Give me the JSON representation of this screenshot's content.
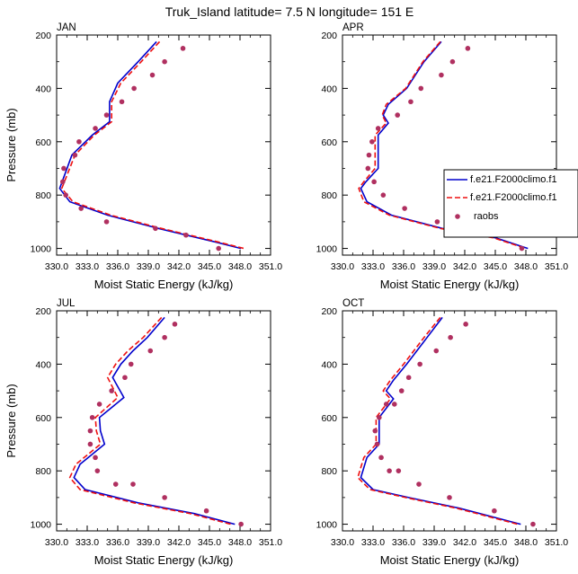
{
  "title": "Truk_Island  latitude= 7.5 N longitude= 151 E",
  "colors": {
    "model1": "#0000cc",
    "model2": "#ee1111",
    "raobs": "#b03060"
  },
  "legend": [
    "f.e21.F2000climo.f1",
    "f.e21.F2000climo.f1",
    "raobs"
  ],
  "chart_data": [
    {
      "type": "line",
      "panel": "JAN",
      "xlabel": "Moist Static Energy (kJ/kg)",
      "ylabel": "Pressure (mb)",
      "xlim": [
        330.0,
        351.0
      ],
      "ylim": [
        1025,
        200
      ],
      "xticks": [
        "330.0",
        "333.0",
        "336.0",
        "339.0",
        "342.0",
        "345.0",
        "348.0",
        "351.0"
      ],
      "yticks": [
        "200",
        "400",
        "600",
        "800",
        "1000"
      ],
      "series": [
        {
          "name": "f.e21.F2000climo.f1",
          "x": [
            339.8,
            338.0,
            336.0,
            335.2,
            335.2,
            333.5,
            331.5,
            330.3,
            331.3,
            335.0,
            340.0,
            345.5,
            348.1
          ],
          "y": [
            225,
            300,
            380,
            450,
            525,
            575,
            650,
            775,
            825,
            875,
            925,
            975,
            1000
          ]
        },
        {
          "name": "f.e21.F2000climo.f1",
          "x": [
            340.1,
            338.3,
            336.3,
            335.4,
            335.4,
            333.7,
            331.8,
            330.5,
            331.6,
            335.3,
            340.3,
            345.8,
            348.4
          ],
          "y": [
            225,
            300,
            380,
            450,
            525,
            575,
            650,
            775,
            825,
            875,
            925,
            975,
            1000
          ]
        },
        {
          "name": "raobs",
          "x": [
            342.4,
            340.6,
            339.4,
            337.6,
            336.4,
            334.9,
            333.8,
            332.2,
            331.8,
            330.7,
            330.6,
            330.9,
            332.4,
            334.9,
            339.7,
            342.7,
            345.9
          ],
          "y": [
            250,
            300,
            350,
            400,
            450,
            500,
            550,
            600,
            650,
            700,
            750,
            800,
            850,
            900,
            925,
            950,
            1000
          ]
        }
      ]
    },
    {
      "type": "line",
      "panel": "APR",
      "xlabel": "Moist Static Energy (kJ/kg)",
      "ylabel": "",
      "xlim": [
        330.0,
        351.0
      ],
      "ylim": [
        1025,
        200
      ],
      "xticks": [
        "330.0",
        "333.0",
        "336.0",
        "339.0",
        "342.0",
        "345.0",
        "348.0",
        "351.0"
      ],
      "yticks": [
        "200",
        "400",
        "600",
        "800",
        "1000"
      ],
      "series": [
        {
          "name": "f.e21.F2000climo.f1",
          "x": [
            339.7,
            338.0,
            336.3,
            334.5,
            334.0,
            334.5,
            333.5,
            333.5,
            332.3,
            331.8,
            332.4,
            334.8,
            339.8,
            345.0,
            348.2
          ],
          "y": [
            225,
            300,
            400,
            460,
            500,
            530,
            575,
            700,
            750,
            775,
            825,
            875,
            925,
            960,
            1000
          ]
        },
        {
          "name": "f.e21.F2000climo.f1",
          "x": [
            339.6,
            337.9,
            336.2,
            334.3,
            333.9,
            334.3,
            333.2,
            333.2,
            332.1,
            331.6,
            332.1,
            334.6,
            339.6,
            344.8,
            348.0
          ],
          "y": [
            225,
            300,
            400,
            460,
            500,
            530,
            575,
            700,
            750,
            775,
            825,
            875,
            925,
            960,
            1000
          ]
        },
        {
          "name": "raobs",
          "x": [
            342.3,
            340.8,
            339.7,
            337.7,
            336.7,
            335.4,
            333.5,
            332.9,
            332.6,
            332.5,
            333.1,
            334.0,
            336.1,
            339.3,
            343.3,
            347.6
          ],
          "y": [
            250,
            300,
            350,
            400,
            450,
            500,
            550,
            600,
            650,
            700,
            750,
            800,
            850,
            900,
            950,
            1000
          ]
        }
      ]
    },
    {
      "type": "line",
      "panel": "JUL",
      "xlabel": "Moist Static Energy (kJ/kg)",
      "ylabel": "Pressure (mb)",
      "xlim": [
        330.0,
        351.0
      ],
      "ylim": [
        1025,
        200
      ],
      "xticks": [
        "330.0",
        "333.0",
        "336.0",
        "339.0",
        "342.0",
        "345.0",
        "348.0",
        "351.0"
      ],
      "yticks": [
        "200",
        "400",
        "600",
        "800",
        "1000"
      ],
      "series": [
        {
          "name": "f.e21.F2000climo.f1",
          "x": [
            340.6,
            338.9,
            337.5,
            336.3,
            335.5,
            336.6,
            334.2,
            334.3,
            334.7,
            332.3,
            331.7,
            332.8,
            338.0,
            343.5,
            347.5
          ],
          "y": [
            225,
            300,
            350,
            400,
            450,
            525,
            600,
            650,
            700,
            775,
            825,
            870,
            920,
            960,
            1000
          ]
        },
        {
          "name": "f.e21.F2000climo.f1",
          "x": [
            340.3,
            338.5,
            337.0,
            335.8,
            335.0,
            336.0,
            333.8,
            333.9,
            334.3,
            331.9,
            331.3,
            332.3,
            337.6,
            343.1,
            347.1
          ],
          "y": [
            225,
            300,
            350,
            400,
            450,
            525,
            600,
            650,
            700,
            775,
            825,
            870,
            920,
            960,
            1000
          ]
        },
        {
          "name": "raobs",
          "x": [
            341.6,
            340.6,
            339.2,
            337.3,
            336.7,
            335.4,
            334.2,
            333.5,
            333.3,
            333.3,
            333.8,
            334.0,
            335.8,
            337.5,
            340.6,
            344.7,
            348.1
          ],
          "y": [
            250,
            300,
            350,
            400,
            450,
            500,
            550,
            600,
            650,
            700,
            750,
            800,
            850,
            850,
            900,
            950,
            1000
          ]
        }
      ]
    },
    {
      "type": "line",
      "panel": "OCT",
      "xlabel": "Moist Static Energy (kJ/kg)",
      "ylabel": "",
      "xlim": [
        330.0,
        351.0
      ],
      "ylim": [
        1025,
        200
      ],
      "xticks": [
        "330.0",
        "333.0",
        "336.0",
        "339.0",
        "342.0",
        "345.0",
        "348.0",
        "351.0"
      ],
      "yticks": [
        "200",
        "400",
        "600",
        "800",
        "1000"
      ],
      "series": [
        {
          "name": "f.e21.F2000climo.f1",
          "x": [
            339.8,
            338.3,
            336.3,
            335.0,
            334.3,
            335.0,
            333.6,
            333.6,
            332.4,
            331.8,
            333.0,
            336.5,
            341.5,
            347.5
          ],
          "y": [
            225,
            300,
            400,
            460,
            500,
            530,
            600,
            700,
            750,
            825,
            870,
            900,
            940,
            1000
          ]
        },
        {
          "name": "f.e21.F2000climo.f1",
          "x": [
            339.6,
            338.0,
            336.0,
            334.7,
            334.0,
            334.7,
            333.3,
            333.3,
            332.1,
            331.5,
            332.7,
            336.2,
            341.2,
            347.2
          ],
          "y": [
            225,
            300,
            400,
            460,
            500,
            530,
            600,
            700,
            750,
            825,
            870,
            900,
            940,
            1000
          ]
        },
        {
          "name": "raobs",
          "x": [
            342.1,
            340.6,
            339.2,
            337.6,
            336.5,
            335.8,
            335.1,
            334.3,
            333.6,
            333.2,
            333.4,
            333.8,
            334.6,
            335.5,
            337.5,
            340.5,
            344.9,
            348.7
          ],
          "y": [
            250,
            300,
            350,
            400,
            450,
            500,
            550,
            550,
            600,
            650,
            700,
            750,
            800,
            800,
            850,
            900,
            950,
            1000
          ]
        }
      ]
    }
  ]
}
